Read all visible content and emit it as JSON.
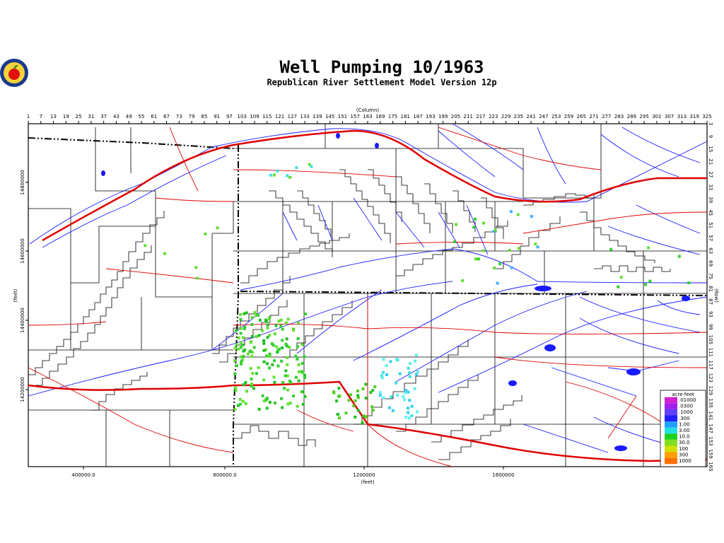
{
  "header": {
    "title": "Well Pumping 10/1963",
    "subtitle": "Republican River Settlement Model Version 12p"
  },
  "axes": {
    "column_label": "(Column)",
    "columns": [
      1,
      7,
      13,
      19,
      25,
      31,
      37,
      43,
      49,
      55,
      61,
      67,
      73,
      79,
      85,
      91,
      97,
      103,
      109,
      115,
      121,
      127,
      133,
      139,
      145,
      151,
      157,
      163,
      169,
      175,
      181,
      187,
      193,
      199,
      205,
      211,
      217,
      223,
      229,
      235,
      241,
      247,
      253,
      259,
      265,
      271,
      277,
      283,
      289,
      295,
      301,
      307,
      313,
      319,
      325
    ],
    "row_label": "(Row)",
    "rows": [
      3,
      9,
      15,
      21,
      27,
      33,
      39,
      45,
      51,
      57,
      63,
      69,
      75,
      81,
      87,
      93,
      99,
      105,
      111,
      117,
      123,
      129,
      135,
      141,
      147,
      153,
      159,
      165
    ],
    "y_feet_label": "(feet)",
    "y_feet": [
      "14800000",
      "14600000",
      "14400000",
      "14200000"
    ],
    "x_feet_label": "(feet)",
    "x_feet": [
      "400000.0",
      "800000.0",
      "1200000",
      "1600000"
    ]
  },
  "legend": {
    "title": "acre-feet",
    "labels": [
      ".01000",
      ".0300",
      ".1000",
      ".300",
      "1.00",
      "3.00",
      "10.0",
      "30.0",
      "100",
      "300",
      "1000"
    ]
  }
}
